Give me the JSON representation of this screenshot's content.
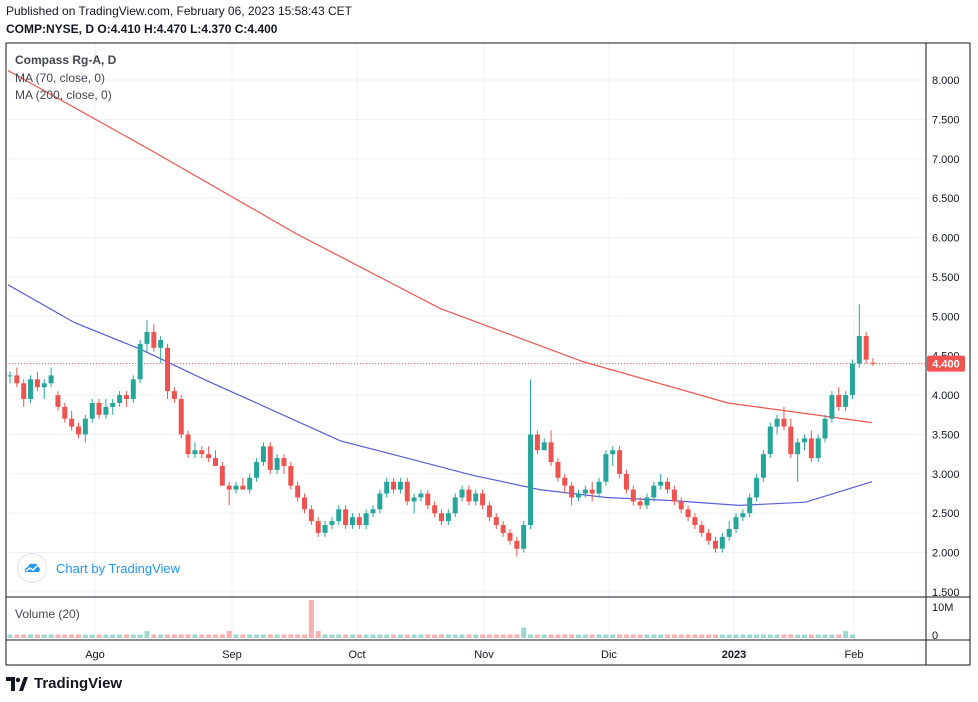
{
  "header": {
    "published": "Published on TradingView.com, February 06, 2023 15:58:43 CET",
    "symbol": "COMP:NYSE, D",
    "ohlc": "O:4.410 H:4.470 L:4.370 C:4.400"
  },
  "legend": {
    "title": "Compass Rg-A, D",
    "ma70": "MA (70, close, 0)",
    "ma200": "MA (200, close, 0)",
    "volume": "Volume (20)"
  },
  "byline": "Chart by TradingView",
  "brand": "TradingView",
  "colors": {
    "up": "#26a69a",
    "down": "#ef5350",
    "ma70": "#5b5fd6",
    "ma200": "#ef5350",
    "last_price_bg": "#ef5350",
    "grid": "#edf0f5"
  },
  "chart_data": {
    "type": "candlestick",
    "price_axis": {
      "min": 1.5,
      "max": 8.0,
      "ticks": [
        1.5,
        2.0,
        2.5,
        3.0,
        3.5,
        4.0,
        4.5,
        5.0,
        5.5,
        6.0,
        6.5,
        7.0,
        7.5,
        8.0
      ],
      "tick_labels": [
        "1.500",
        "2.000",
        "2.500",
        "3.000",
        "3.500",
        "4.000",
        "4.500",
        "5.000",
        "5.500",
        "6.000",
        "6.500",
        "7.000",
        "7.500",
        "8.000"
      ]
    },
    "volume_axis": {
      "ticks": [
        "10M",
        "0"
      ]
    },
    "time_axis": [
      "Ago",
      "Sep",
      "Oct",
      "Nov",
      "Dic",
      "2023",
      "Feb"
    ],
    "last_price": 4.4,
    "last_price_label": "4.400",
    "candles": [
      [
        4.25,
        4.3,
        4.15,
        4.25
      ],
      [
        4.25,
        4.35,
        4.1,
        4.15
      ],
      [
        4.15,
        4.2,
        3.85,
        3.95
      ],
      [
        3.95,
        4.25,
        3.9,
        4.2
      ],
      [
        4.2,
        4.3,
        4.05,
        4.1
      ],
      [
        4.1,
        4.2,
        3.95,
        4.15
      ],
      [
        4.15,
        4.35,
        4.1,
        4.25
      ],
      [
        4.0,
        4.05,
        3.8,
        3.85
      ],
      [
        3.85,
        3.9,
        3.65,
        3.7
      ],
      [
        3.7,
        3.8,
        3.55,
        3.6
      ],
      [
        3.6,
        3.65,
        3.45,
        3.5
      ],
      [
        3.5,
        3.75,
        3.4,
        3.7
      ],
      [
        3.7,
        3.95,
        3.65,
        3.9
      ],
      [
        3.9,
        3.95,
        3.7,
        3.75
      ],
      [
        3.75,
        3.95,
        3.7,
        3.85
      ],
      [
        3.85,
        3.95,
        3.75,
        3.9
      ],
      [
        3.9,
        4.05,
        3.85,
        4.0
      ],
      [
        4.0,
        4.05,
        3.85,
        3.95
      ],
      [
        3.95,
        4.25,
        3.9,
        4.2
      ],
      [
        4.2,
        4.7,
        4.15,
        4.65
      ],
      [
        4.65,
        4.95,
        4.55,
        4.8
      ],
      [
        4.8,
        4.9,
        4.55,
        4.6
      ],
      [
        4.6,
        4.75,
        4.4,
        4.7
      ],
      [
        4.6,
        4.65,
        3.95,
        4.05
      ],
      [
        4.05,
        4.1,
        3.9,
        3.95
      ],
      [
        3.95,
        4.0,
        3.45,
        3.5
      ],
      [
        3.5,
        3.55,
        3.2,
        3.25
      ],
      [
        3.25,
        3.4,
        3.2,
        3.3
      ],
      [
        3.3,
        3.35,
        3.2,
        3.25
      ],
      [
        3.25,
        3.35,
        3.15,
        3.2
      ],
      [
        3.2,
        3.3,
        3.1,
        3.1
      ],
      [
        3.1,
        3.15,
        2.85,
        2.85
      ],
      [
        2.85,
        2.9,
        2.6,
        2.8
      ],
      [
        2.8,
        2.9,
        2.75,
        2.85
      ],
      [
        2.85,
        2.95,
        2.8,
        2.8
      ],
      [
        2.8,
        3.0,
        2.75,
        2.95
      ],
      [
        2.95,
        3.2,
        2.9,
        3.15
      ],
      [
        3.15,
        3.4,
        3.1,
        3.35
      ],
      [
        3.35,
        3.4,
        3.0,
        3.05
      ],
      [
        3.05,
        3.25,
        3.0,
        3.2
      ],
      [
        3.2,
        3.25,
        3.0,
        3.1
      ],
      [
        3.1,
        3.15,
        2.8,
        2.85
      ],
      [
        2.85,
        2.9,
        2.65,
        2.7
      ],
      [
        2.7,
        2.75,
        2.5,
        2.55
      ],
      [
        2.55,
        2.6,
        2.35,
        2.4
      ],
      [
        2.4,
        2.45,
        2.2,
        2.25
      ],
      [
        2.25,
        2.4,
        2.2,
        2.35
      ],
      [
        2.35,
        2.45,
        2.3,
        2.4
      ],
      [
        2.4,
        2.6,
        2.35,
        2.55
      ],
      [
        2.55,
        2.6,
        2.3,
        2.35
      ],
      [
        2.35,
        2.5,
        2.3,
        2.45
      ],
      [
        2.45,
        2.5,
        2.3,
        2.35
      ],
      [
        2.35,
        2.55,
        2.3,
        2.5
      ],
      [
        2.5,
        2.6,
        2.45,
        2.55
      ],
      [
        2.55,
        2.8,
        2.5,
        2.75
      ],
      [
        2.75,
        2.95,
        2.7,
        2.9
      ],
      [
        2.9,
        2.95,
        2.75,
        2.8
      ],
      [
        2.8,
        2.95,
        2.75,
        2.9
      ],
      [
        2.9,
        2.95,
        2.6,
        2.65
      ],
      [
        2.65,
        2.75,
        2.5,
        2.7
      ],
      [
        2.7,
        2.8,
        2.65,
        2.75
      ],
      [
        2.75,
        2.8,
        2.55,
        2.6
      ],
      [
        2.6,
        2.65,
        2.45,
        2.5
      ],
      [
        2.5,
        2.55,
        2.35,
        2.4
      ],
      [
        2.4,
        2.55,
        2.35,
        2.5
      ],
      [
        2.5,
        2.75,
        2.45,
        2.7
      ],
      [
        2.7,
        2.85,
        2.65,
        2.8
      ],
      [
        2.8,
        2.85,
        2.6,
        2.65
      ],
      [
        2.65,
        2.8,
        2.6,
        2.75
      ],
      [
        2.75,
        2.8,
        2.55,
        2.6
      ],
      [
        2.6,
        2.65,
        2.4,
        2.45
      ],
      [
        2.45,
        2.5,
        2.3,
        2.35
      ],
      [
        2.35,
        2.4,
        2.2,
        2.25
      ],
      [
        2.25,
        2.3,
        2.1,
        2.15
      ],
      [
        2.15,
        2.2,
        1.95,
        2.05
      ],
      [
        2.05,
        2.4,
        2.0,
        2.35
      ],
      [
        2.35,
        4.2,
        2.3,
        3.5
      ],
      [
        3.5,
        3.55,
        3.25,
        3.3
      ],
      [
        3.3,
        3.45,
        3.3,
        3.4
      ],
      [
        3.4,
        3.55,
        3.1,
        3.15
      ],
      [
        3.15,
        3.2,
        2.9,
        2.95
      ],
      [
        2.95,
        3.0,
        2.75,
        2.85
      ],
      [
        2.85,
        2.9,
        2.6,
        2.7
      ],
      [
        2.7,
        2.8,
        2.65,
        2.75
      ],
      [
        2.75,
        2.85,
        2.7,
        2.8
      ],
      [
        2.8,
        2.9,
        2.65,
        2.75
      ],
      [
        2.75,
        2.95,
        2.7,
        2.9
      ],
      [
        2.9,
        3.3,
        2.85,
        3.25
      ],
      [
        3.25,
        3.35,
        3.1,
        3.3
      ],
      [
        3.3,
        3.35,
        2.95,
        3.0
      ],
      [
        3.0,
        3.05,
        2.75,
        2.8
      ],
      [
        2.8,
        2.85,
        2.6,
        2.65
      ],
      [
        2.65,
        2.7,
        2.55,
        2.6
      ],
      [
        2.6,
        2.75,
        2.55,
        2.7
      ],
      [
        2.7,
        2.9,
        2.65,
        2.85
      ],
      [
        2.85,
        3.0,
        2.8,
        2.9
      ],
      [
        2.9,
        2.95,
        2.75,
        2.8
      ],
      [
        2.8,
        2.85,
        2.6,
        2.65
      ],
      [
        2.65,
        2.7,
        2.5,
        2.55
      ],
      [
        2.55,
        2.6,
        2.4,
        2.45
      ],
      [
        2.45,
        2.5,
        2.3,
        2.35
      ],
      [
        2.35,
        2.4,
        2.2,
        2.25
      ],
      [
        2.25,
        2.3,
        2.1,
        2.15
      ],
      [
        2.15,
        2.2,
        2.0,
        2.05
      ],
      [
        2.05,
        2.25,
        2.0,
        2.2
      ],
      [
        2.2,
        2.4,
        2.15,
        2.3
      ],
      [
        2.3,
        2.5,
        2.25,
        2.45
      ],
      [
        2.45,
        2.55,
        2.4,
        2.5
      ],
      [
        2.5,
        2.75,
        2.45,
        2.7
      ],
      [
        2.7,
        3.0,
        2.65,
        2.95
      ],
      [
        2.95,
        3.3,
        2.9,
        3.25
      ],
      [
        3.25,
        3.65,
        3.2,
        3.6
      ],
      [
        3.6,
        3.75,
        3.5,
        3.7
      ],
      [
        3.7,
        3.85,
        3.55,
        3.6
      ],
      [
        3.6,
        3.7,
        3.2,
        3.25
      ],
      [
        3.25,
        3.45,
        2.9,
        3.4
      ],
      [
        3.4,
        3.5,
        3.3,
        3.45
      ],
      [
        3.45,
        3.55,
        3.15,
        3.2
      ],
      [
        3.2,
        3.5,
        3.15,
        3.45
      ],
      [
        3.45,
        3.75,
        3.4,
        3.7
      ],
      [
        3.7,
        4.05,
        3.65,
        4.0
      ],
      [
        4.0,
        4.1,
        3.8,
        3.85
      ],
      [
        3.85,
        4.05,
        3.8,
        4.0
      ],
      [
        4.0,
        4.45,
        3.95,
        4.4
      ],
      [
        4.4,
        5.15,
        4.35,
        4.75
      ],
      [
        4.75,
        4.8,
        4.4,
        4.45
      ],
      [
        4.41,
        4.47,
        4.37,
        4.4
      ]
    ],
    "volume": [
      1,
      1,
      1,
      1,
      1,
      1,
      1,
      1,
      1,
      1,
      1,
      1,
      1,
      1,
      1,
      1,
      1,
      1,
      1,
      1,
      2,
      1,
      1,
      1,
      1,
      1,
      1,
      1,
      1,
      1,
      1,
      1,
      2,
      1,
      1,
      1,
      1,
      1,
      1,
      1,
      1,
      1,
      1,
      1,
      11,
      2,
      1,
      1,
      1,
      1,
      1,
      1,
      1,
      1,
      1,
      1,
      1,
      1,
      1,
      1,
      1,
      1,
      1,
      1,
      1,
      1,
      1,
      1,
      1,
      1,
      1,
      1,
      1,
      1,
      1,
      3,
      1,
      1,
      1,
      1,
      1,
      1,
      1,
      1,
      1,
      1,
      1,
      1,
      1,
      1,
      1,
      1,
      1,
      1,
      1,
      1,
      1,
      1,
      1,
      1,
      1,
      1,
      1,
      1,
      1,
      1,
      1,
      1,
      1,
      1,
      1,
      1,
      1,
      1,
      1,
      1,
      1,
      1,
      1,
      1,
      1,
      1,
      2,
      1
    ],
    "ma70": [
      5.4,
      4.92,
      4.58,
      4.18,
      3.8,
      3.42,
      3.2,
      2.98,
      2.8,
      2.7,
      2.66,
      2.6,
      2.64,
      2.9
    ],
    "ma200": [
      8.12,
      7.1,
      6.05,
      5.1,
      4.42,
      3.9,
      3.65
    ]
  }
}
